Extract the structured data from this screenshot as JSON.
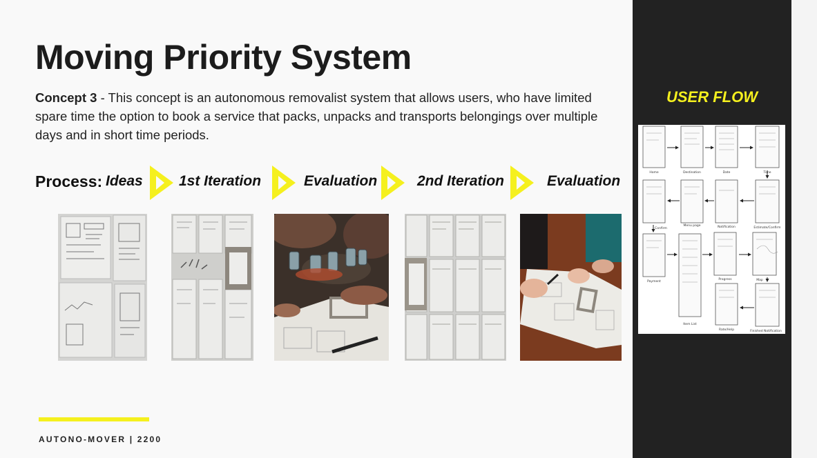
{
  "slide": {
    "title": "Moving Priority System",
    "concept_label": "Concept 3",
    "concept_text": " - This concept is an autonomous removalist system that allows users, who have limited spare time the option to book a service that packs, unpacks and transports belongings over multiple days and in short time periods."
  },
  "process": {
    "label": "Process:",
    "steps": [
      "Ideas",
      "1st Iteration",
      "Evaluation",
      "2nd Iteration",
      "Evaluation"
    ]
  },
  "footer": {
    "text": "AUTONO-MOVER | 2200"
  },
  "sidebar": {
    "title": "USER FLOW",
    "screen_labels": [
      "Home",
      "Destination",
      "Date",
      "Time",
      "Estimate/Confirm",
      "Notification",
      "Menu page",
      "Confirm",
      "Payment",
      "Item List",
      "Progress",
      "Map",
      "Finished Notification",
      "Rate/Help"
    ]
  },
  "colors": {
    "accent": "#f5f01e",
    "sidebar_bg": "#222222",
    "page_bg": "#f9f9f9"
  }
}
